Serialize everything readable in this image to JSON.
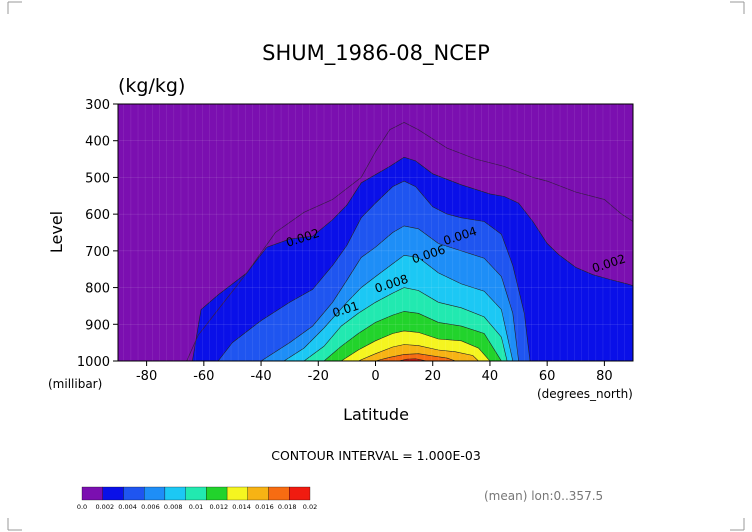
{
  "chart_data": {
    "type": "filled-contour",
    "title": "SHUM_1986-08_NCEP",
    "unit": "(kg/kg)",
    "xlabel": "Latitude",
    "x_unit": "(degrees_north)",
    "ylabel": "Level",
    "y_unit": "(millibar)",
    "xlim": [
      -90,
      90
    ],
    "ylim": [
      1000,
      300
    ],
    "x_ticks": [
      -80,
      -60,
      -40,
      -20,
      0,
      20,
      40,
      60,
      80
    ],
    "y_ticks": [
      300,
      400,
      500,
      600,
      700,
      800,
      900,
      1000
    ],
    "contour_interval_text": "CONTOUR INTERVAL = 1.000E-03",
    "footnote": "(mean) lon:0..357.5",
    "levels": [
      0.0,
      0.002,
      0.004,
      0.006,
      0.008,
      0.01,
      0.012,
      0.014,
      0.016,
      0.018,
      0.02
    ],
    "level_labels": [
      "0.0",
      "0.002",
      "0.004",
      "0.006",
      "0.008",
      "0.01",
      "0.012",
      "0.014",
      "0.016",
      "0.018",
      "0.02"
    ],
    "colors": [
      "#7b0fb0",
      "#0a10e8",
      "#1f55f0",
      "#1e8ef7",
      "#1cc8f4",
      "#22e9b0",
      "#22d32c",
      "#f5f520",
      "#f7b314",
      "#f76c12",
      "#f01b10"
    ],
    "contour_labels": [
      {
        "value": "0.002",
        "lat": -25,
        "lev": 675
      },
      {
        "value": "0.004",
        "lat": 30,
        "lev": 670
      },
      {
        "value": "0.006",
        "lat": 19,
        "lev": 720
      },
      {
        "value": "0.008",
        "lat": 6,
        "lev": 800
      },
      {
        "value": "0.01",
        "lat": -10,
        "lev": 870
      },
      {
        "value": "0.002",
        "lat": 82,
        "lev": 745
      }
    ],
    "bands": [
      {
        "level": 0.002,
        "bottom": [
          -64,
          64
        ],
        "top": [
          [
            -64,
            1000
          ],
          [
            -61,
            860
          ],
          [
            -55,
            820
          ],
          [
            -45,
            760
          ],
          [
            -38,
            690
          ],
          [
            -30,
            668
          ],
          [
            -22,
            660
          ],
          [
            -15,
            615
          ],
          [
            -10,
            575
          ],
          [
            -5,
            515
          ],
          [
            5,
            470
          ],
          [
            10,
            445
          ],
          [
            14,
            455
          ],
          [
            20,
            490
          ],
          [
            30,
            520
          ],
          [
            40,
            545
          ],
          [
            45,
            552
          ],
          [
            50,
            570
          ],
          [
            55,
            620
          ],
          [
            60,
            680
          ],
          [
            64,
            710
          ],
          [
            70,
            745
          ],
          [
            76,
            765
          ],
          [
            82,
            778
          ],
          [
            88,
            790
          ],
          [
            90,
            795
          ]
        ],
        "right_edge_to": 1000
      },
      {
        "level": 0.004,
        "bottom": [
          -55,
          54
        ],
        "top": [
          [
            -55,
            1000
          ],
          [
            -50,
            950
          ],
          [
            -40,
            890
          ],
          [
            -30,
            840
          ],
          [
            -22,
            805
          ],
          [
            -15,
            740
          ],
          [
            -10,
            685
          ],
          [
            -5,
            610
          ],
          [
            0,
            570
          ],
          [
            6,
            525
          ],
          [
            10,
            510
          ],
          [
            14,
            525
          ],
          [
            20,
            580
          ],
          [
            25,
            600
          ],
          [
            30,
            610
          ],
          [
            38,
            620
          ],
          [
            44,
            655
          ],
          [
            48,
            740
          ],
          [
            52,
            870
          ],
          [
            54,
            1000
          ]
        ]
      },
      {
        "level": 0.006,
        "bottom": [
          -40,
          50
        ],
        "top": [
          [
            -40,
            1000
          ],
          [
            -30,
            950
          ],
          [
            -22,
            905
          ],
          [
            -15,
            840
          ],
          [
            -10,
            780
          ],
          [
            -5,
            718
          ],
          [
            0,
            690
          ],
          [
            6,
            650
          ],
          [
            10,
            632
          ],
          [
            15,
            640
          ],
          [
            22,
            680
          ],
          [
            30,
            700
          ],
          [
            38,
            720
          ],
          [
            44,
            770
          ],
          [
            48,
            870
          ],
          [
            50,
            1000
          ]
        ]
      },
      {
        "level": 0.008,
        "bottom": [
          -32,
          48
        ],
        "top": [
          [
            -32,
            1000
          ],
          [
            -25,
            965
          ],
          [
            -18,
            910
          ],
          [
            -10,
            840
          ],
          [
            -5,
            800
          ],
          [
            0,
            770
          ],
          [
            6,
            735
          ],
          [
            10,
            712
          ],
          [
            15,
            718
          ],
          [
            22,
            760
          ],
          [
            30,
            790
          ],
          [
            38,
            810
          ],
          [
            44,
            860
          ],
          [
            48,
            1000
          ]
        ]
      },
      {
        "level": 0.01,
        "bottom": [
          -25,
          46
        ],
        "top": [
          [
            -25,
            1000
          ],
          [
            -18,
            960
          ],
          [
            -12,
            905
          ],
          [
            -6,
            870
          ],
          [
            0,
            840
          ],
          [
            6,
            815
          ],
          [
            10,
            800
          ],
          [
            15,
            808
          ],
          [
            22,
            840
          ],
          [
            30,
            855
          ],
          [
            38,
            880
          ],
          [
            44,
            935
          ],
          [
            46,
            1000
          ]
        ]
      },
      {
        "level": 0.012,
        "bottom": [
          -18,
          44
        ],
        "top": [
          [
            -18,
            1000
          ],
          [
            -12,
            960
          ],
          [
            -6,
            925
          ],
          [
            0,
            895
          ],
          [
            6,
            875
          ],
          [
            10,
            865
          ],
          [
            15,
            870
          ],
          [
            22,
            895
          ],
          [
            30,
            905
          ],
          [
            38,
            925
          ],
          [
            44,
            1000
          ]
        ]
      },
      {
        "level": 0.014,
        "bottom": [
          -12,
          40
        ],
        "top": [
          [
            -12,
            1000
          ],
          [
            -6,
            970
          ],
          [
            0,
            945
          ],
          [
            6,
            925
          ],
          [
            10,
            918
          ],
          [
            15,
            922
          ],
          [
            22,
            940
          ],
          [
            30,
            945
          ],
          [
            36,
            965
          ],
          [
            40,
            1000
          ]
        ]
      },
      {
        "level": 0.016,
        "bottom": [
          -6,
          36
        ],
        "top": [
          [
            -6,
            1000
          ],
          [
            0,
            980
          ],
          [
            6,
            962
          ],
          [
            10,
            955
          ],
          [
            15,
            958
          ],
          [
            22,
            970
          ],
          [
            28,
            975
          ],
          [
            34,
            985
          ],
          [
            36,
            1000
          ]
        ]
      },
      {
        "level": 0.018,
        "bottom": [
          0,
          28
        ],
        "top": [
          [
            0,
            1000
          ],
          [
            5,
            990
          ],
          [
            10,
            982
          ],
          [
            15,
            980
          ],
          [
            20,
            986
          ],
          [
            25,
            992
          ],
          [
            28,
            1000
          ]
        ]
      },
      {
        "level": 0.02,
        "bottom": [
          8,
          18
        ],
        "top": [
          [
            8,
            1000
          ],
          [
            11,
            995
          ],
          [
            14,
            994
          ],
          [
            18,
            1000
          ]
        ]
      }
    ],
    "outer_contour_0_001": [
      [
        -66,
        1000
      ],
      [
        -62,
        930
      ],
      [
        -55,
        860
      ],
      [
        -45,
        760
      ],
      [
        -35,
        650
      ],
      [
        -25,
        595
      ],
      [
        -15,
        560
      ],
      [
        -5,
        500
      ],
      [
        0,
        430
      ],
      [
        5,
        370
      ],
      [
        10,
        350
      ],
      [
        15,
        370
      ],
      [
        25,
        420
      ],
      [
        35,
        450
      ],
      [
        45,
        470
      ],
      [
        55,
        500
      ],
      [
        60,
        510
      ],
      [
        70,
        540
      ],
      [
        80,
        560
      ],
      [
        86,
        600
      ],
      [
        90,
        620
      ]
    ]
  }
}
